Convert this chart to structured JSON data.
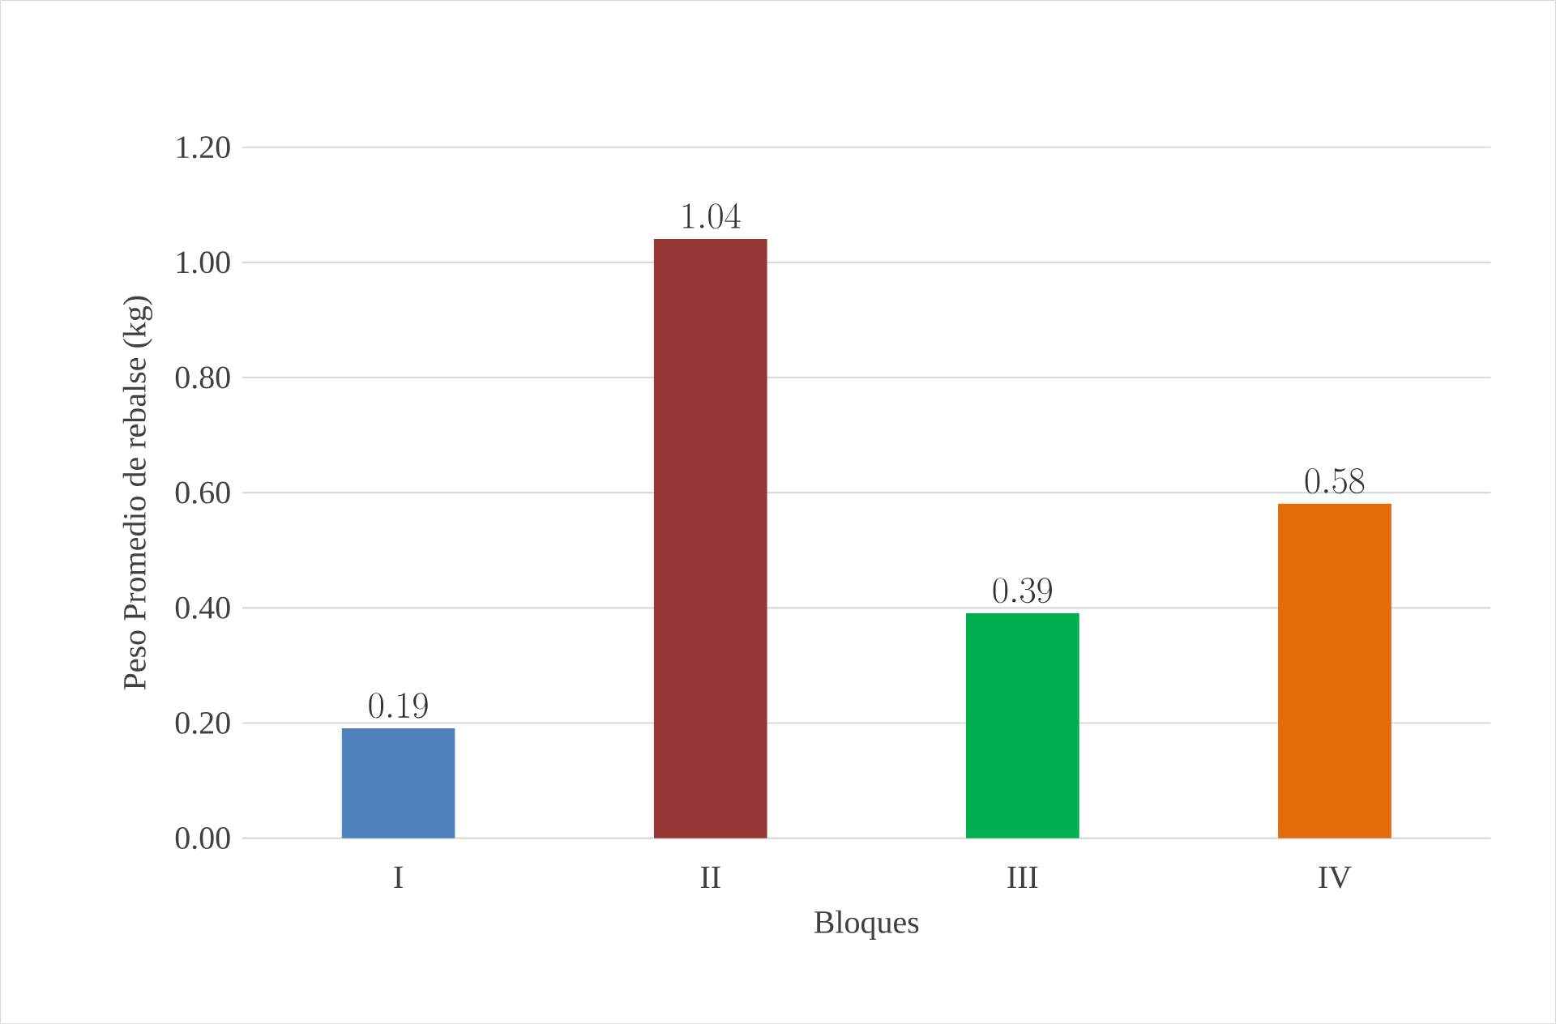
{
  "chart_data": {
    "type": "bar",
    "xlabel": "Bloques",
    "ylabel": "Peso Promedio de rebalse (kg)",
    "categories": [
      "I",
      "II",
      "III",
      "IV"
    ],
    "values": [
      0.19,
      1.04,
      0.39,
      0.58
    ],
    "colors": [
      "#4f81bd",
      "#943634",
      "#00b050",
      "#e36c09"
    ],
    "ylim": [
      0,
      1.2
    ],
    "yticks": [
      {
        "value": 0,
        "label": "0.00"
      },
      {
        "value": 0.2,
        "label": "0.20"
      },
      {
        "value": 0.4,
        "label": "0.40"
      },
      {
        "value": 0.6,
        "label": "0.60"
      },
      {
        "value": 0.8,
        "label": "0.80"
      },
      {
        "value": 1.0,
        "label": "1.00"
      },
      {
        "value": 1.2,
        "label": "1.20"
      }
    ],
    "grid": "y",
    "data_labels": true
  }
}
